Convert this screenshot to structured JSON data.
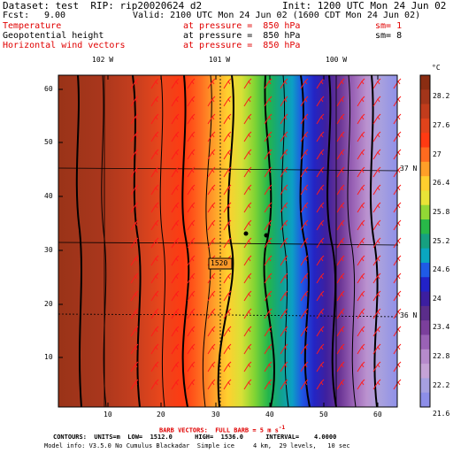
{
  "header": {
    "dataset": "Dataset: test  RIP: rip20020624 d2",
    "init": "Init: 1200 UTC Mon 24 Jun 02",
    "fcst_label": "Fcst:",
    "fcst_value": "9.00",
    "valid": "Valid: 2100 UTC Mon 24 Jun 02 (1600 CDT Mon 24 Jun 02)",
    "field1_name": "Temperature",
    "field1_level": "at pressure =  850 hPa",
    "field1_sm": "sm= 1",
    "field2_name": "Geopotential height",
    "field2_level": "at pressure =  850 hPa",
    "field2_sm": "sm= 8",
    "field3_name": "Horizontal wind vectors",
    "field3_level": "at pressure =  850 hPa"
  },
  "map": {
    "longitude_labels": [
      "102 W",
      "101 W",
      "100 W"
    ],
    "latitude_labels": [
      "37 N",
      "36 N"
    ],
    "contour_label": "1520",
    "x_ticks": [
      "10",
      "20",
      "30",
      "40",
      "50",
      "60"
    ],
    "y_ticks": [
      "10",
      "20",
      "30",
      "40",
      "50",
      "60"
    ]
  },
  "colorbar": {
    "unit": "°C",
    "labels": [
      "28.2",
      "27.6",
      "27",
      "26.4",
      "25.8",
      "25.2",
      "24.6",
      "24",
      "23.4",
      "22.8",
      "22.2",
      "21.6"
    ],
    "colors": [
      "#8b2d12",
      "#a3351a",
      "#c23c1c",
      "#e0431b",
      "#ff3a12",
      "#ff6a1f",
      "#ff9f28",
      "#ffcf2e",
      "#e9e437",
      "#92d835",
      "#28b848",
      "#16a080",
      "#0aa6c0",
      "#1f5ae6",
      "#2222c8",
      "#3c1ea0",
      "#5b2d8a",
      "#7b3f9c",
      "#9a62b6",
      "#b68acb",
      "#c5a3d6",
      "#a6a0e0",
      "#8d8ee8"
    ]
  },
  "footer": {
    "barb_vectors": "BARB VECTORS:  FULL BARB = 5 m s",
    "barb_exp": "-1",
    "contours": "CONTOURS:  UNITS=m  LOW=  1512.0      HIGH=  1536.0      INTERVAL=    4.0000",
    "model_info": "Model info: V3.5.0 No Cumulus Blackadar  Simple ice     4 km,  29 levels,   10 sec"
  }
}
